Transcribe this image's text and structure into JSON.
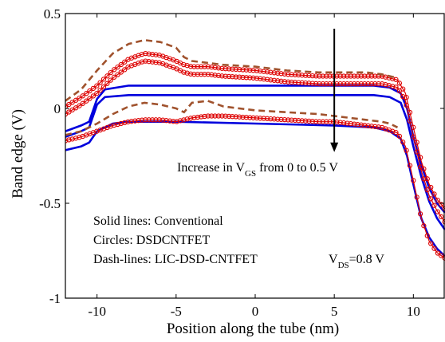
{
  "chart_data": {
    "type": "line",
    "xlabel": "Position along the tube (nm)",
    "ylabel": "Band edge (V)",
    "xlim": [
      -12,
      12
    ],
    "ylim": [
      -1,
      0.5
    ],
    "xticks": [
      -10,
      -5,
      0,
      5,
      10
    ],
    "yticks": [
      -1,
      -0.5,
      0,
      0.5
    ],
    "xtick_labels": [
      "-10",
      "-5",
      "0",
      "5",
      "10"
    ],
    "ytick_labels": [
      "-1",
      "-0.5",
      "0",
      "0.5"
    ],
    "grid": false,
    "legend_text": {
      "solid": "Solid lines: Conventional",
      "circles": "Circles: DSDCNTFET",
      "dash": "Dash-lines: LIC-DSD-CNTFET"
    },
    "annotations": {
      "arrow_main": "Increase in V",
      "arrow_sub": "GS",
      "arrow_tail": " from 0 to 0.5 V",
      "vds_main": "V",
      "vds_sub": "DS",
      "vds_tail": "=0.8 V"
    },
    "arrow": {
      "x": 5,
      "y_from": 0.42,
      "y_to": -0.23
    },
    "colors": {
      "conventional": "#0000dd",
      "dsd": "#dd0000",
      "lic": "#a0522d"
    },
    "series": [
      {
        "style": "solid",
        "color": "#0000dd",
        "x": [
          -12,
          -11,
          -10.5,
          -10,
          -9.5,
          -8,
          -5,
          0,
          5,
          7.5,
          8.5,
          9.2,
          9.6,
          10,
          10.5,
          11,
          11.5,
          12
        ],
        "y": [
          -0.12,
          -0.09,
          -0.07,
          0.05,
          0.1,
          0.12,
          0.12,
          0.12,
          0.12,
          0.12,
          0.11,
          0.08,
          0.0,
          -0.15,
          -0.3,
          -0.42,
          -0.5,
          -0.55
        ]
      },
      {
        "style": "solid",
        "color": "#0000dd",
        "x": [
          -12,
          -11,
          -10.5,
          -10,
          -9.5,
          -8,
          -5,
          0,
          5,
          7.5,
          8.5,
          9.2,
          9.6,
          10,
          10.5,
          11,
          11.5,
          12
        ],
        "y": [
          -0.15,
          -0.12,
          -0.1,
          0.02,
          0.06,
          0.07,
          0.07,
          0.07,
          0.07,
          0.07,
          0.06,
          0.03,
          -0.06,
          -0.2,
          -0.36,
          -0.49,
          -0.58,
          -0.64
        ]
      },
      {
        "style": "solid",
        "color": "#0000dd",
        "x": [
          -12,
          -11,
          -10.5,
          -10,
          -9.5,
          -9,
          -8,
          -5,
          0,
          5,
          7.5,
          8.5,
          9.2,
          9.6,
          10,
          10.5,
          11,
          11.5,
          12
        ],
        "y": [
          -0.22,
          -0.2,
          -0.18,
          -0.12,
          -0.1,
          -0.08,
          -0.07,
          -0.07,
          -0.08,
          -0.09,
          -0.1,
          -0.12,
          -0.16,
          -0.25,
          -0.4,
          -0.58,
          -0.68,
          -0.74,
          -0.78
        ]
      },
      {
        "style": "circles",
        "color": "#dd0000",
        "x": [
          -12,
          -11,
          -10,
          -9,
          -8,
          -7,
          -6,
          -5,
          -4.5,
          -4,
          -3,
          -2,
          0,
          2,
          4,
          5,
          6,
          7,
          8,
          9,
          9.5,
          10,
          10.5,
          11,
          11.5,
          12
        ],
        "y": [
          0.01,
          0.06,
          0.12,
          0.2,
          0.26,
          0.29,
          0.28,
          0.25,
          0.23,
          0.22,
          0.22,
          0.21,
          0.2,
          0.18,
          0.17,
          0.17,
          0.17,
          0.17,
          0.17,
          0.15,
          0.08,
          -0.1,
          -0.28,
          -0.4,
          -0.48,
          -0.53
        ]
      },
      {
        "style": "circles",
        "color": "#dd0000",
        "x": [
          -12,
          -11,
          -10,
          -9,
          -8,
          -7,
          -6,
          -5,
          -4.5,
          -4,
          -3,
          -2,
          0,
          2,
          4,
          5,
          6,
          7,
          8,
          9,
          9.5,
          10,
          10.5,
          11,
          11.5,
          12
        ],
        "y": [
          -0.03,
          0.02,
          0.08,
          0.16,
          0.22,
          0.25,
          0.24,
          0.21,
          0.19,
          0.18,
          0.18,
          0.17,
          0.16,
          0.14,
          0.13,
          0.13,
          0.13,
          0.13,
          0.13,
          0.11,
          0.04,
          -0.15,
          -0.33,
          -0.46,
          -0.54,
          -0.6
        ]
      },
      {
        "style": "circles",
        "color": "#dd0000",
        "x": [
          -12,
          -11,
          -10,
          -9,
          -8,
          -7,
          -6,
          -5,
          -4.5,
          -4,
          -3,
          -2,
          0,
          2,
          4,
          5,
          6,
          7,
          8,
          9,
          9.5,
          10,
          10.5,
          11,
          11.5,
          12
        ],
        "y": [
          -0.17,
          -0.15,
          -0.12,
          -0.09,
          -0.07,
          -0.06,
          -0.06,
          -0.07,
          -0.06,
          -0.05,
          -0.04,
          -0.04,
          -0.05,
          -0.06,
          -0.07,
          -0.07,
          -0.08,
          -0.09,
          -0.1,
          -0.13,
          -0.2,
          -0.38,
          -0.58,
          -0.7,
          -0.76,
          -0.79
        ]
      },
      {
        "style": "dashed",
        "color": "#a0522d",
        "x": [
          -12,
          -11,
          -10,
          -9,
          -8,
          -7,
          -6,
          -5,
          -4.5,
          -4,
          -3,
          -2,
          0,
          2,
          4,
          5,
          6,
          7,
          8,
          8.5,
          9
        ],
        "y": [
          0.04,
          0.1,
          0.2,
          0.29,
          0.34,
          0.36,
          0.35,
          0.32,
          0.27,
          0.25,
          0.24,
          0.23,
          0.22,
          0.2,
          0.19,
          0.19,
          0.19,
          0.19,
          0.18,
          0.17,
          0.16
        ]
      },
      {
        "style": "dashed",
        "color": "#a0522d",
        "x": [
          -12,
          -11,
          -10,
          -9,
          -8,
          -7,
          -6,
          -5,
          -4.5,
          -4,
          -3,
          -2,
          0,
          2,
          4,
          5,
          6,
          7,
          8,
          8.5,
          9
        ],
        "y": [
          -0.14,
          -0.12,
          -0.08,
          -0.03,
          0.01,
          0.03,
          0.02,
          0.0,
          -0.02,
          0.03,
          0.04,
          0.01,
          -0.01,
          -0.02,
          -0.03,
          -0.04,
          -0.05,
          -0.06,
          -0.07,
          -0.08,
          -0.1
        ]
      }
    ]
  }
}
